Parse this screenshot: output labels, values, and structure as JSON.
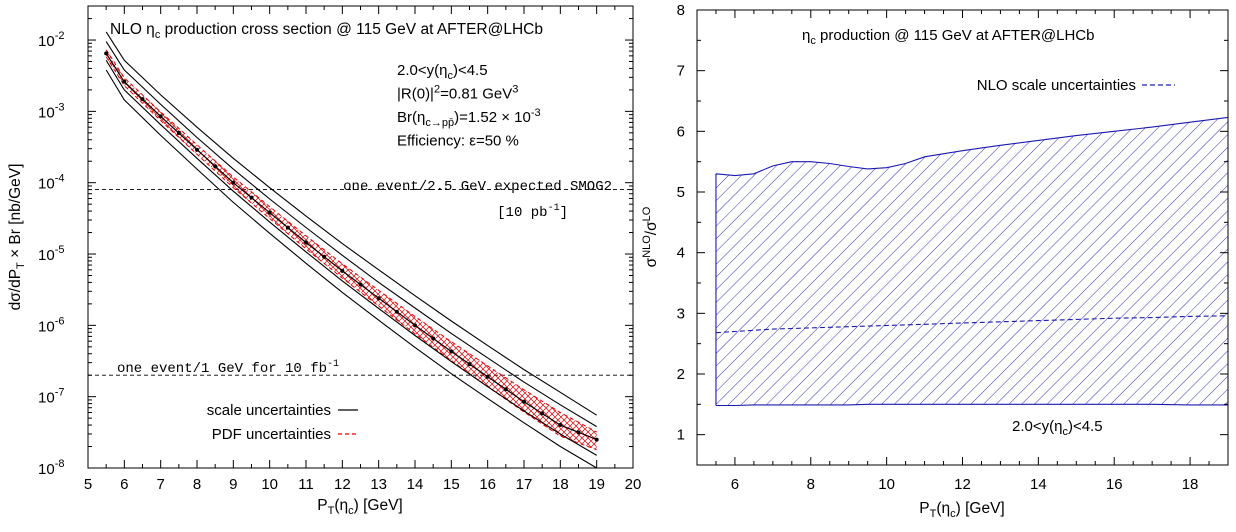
{
  "chart_data": [
    {
      "type": "line",
      "yscale": "log",
      "title": "NLO η_c production cross section @ 115 GeV at AFTER@LHCb",
      "xlabel": "P_T(η_c) [GeV]",
      "ylabel": "dσ/dP_T × Br [nb/GeV]",
      "xlim": [
        5,
        20
      ],
      "ylim": [
        1e-08,
        0.03
      ],
      "x_ticks": [
        "5",
        "6",
        "7",
        "8",
        "9",
        "10",
        "11",
        "12",
        "13",
        "14",
        "15",
        "16",
        "17",
        "18",
        "19",
        "20"
      ],
      "y_ticks": [
        {
          "value": 1e-08,
          "mant": "10",
          "exp": "-8"
        },
        {
          "value": 1e-07,
          "mant": "10",
          "exp": "-7"
        },
        {
          "value": 1e-06,
          "mant": "10",
          "exp": "-6"
        },
        {
          "value": 1e-05,
          "mant": "10",
          "exp": "-5"
        },
        {
          "value": 0.0001,
          "mant": "10",
          "exp": "-4"
        },
        {
          "value": 0.001,
          "mant": "10",
          "exp": "-3"
        },
        {
          "value": 0.01,
          "mant": "10",
          "exp": "-2"
        }
      ],
      "info_lines": [
        "2.0<y(η_c)<4.5",
        "|R(0)|²=0.81 GeV³",
        "Br(η_c→pp̄)=1.52 × 10⁻³",
        "Efficiency: ε=50 %"
      ],
      "reference_lines": [
        {
          "y": 8e-05,
          "label": "one event/2.5 GeV expected SMOG2",
          "sublabel": "[10 pb⁻¹]"
        },
        {
          "y": 2e-07,
          "label": "one event/1 GeV for 10 fb⁻¹"
        }
      ],
      "legend": [
        "scale uncertainties",
        "PDF uncertainties"
      ],
      "legend_position": "bottom-left",
      "colors": {
        "central": "#000000",
        "scale": "#000000",
        "pdf": "#e00000"
      },
      "x": [
        5.5,
        6,
        7,
        8,
        9,
        10,
        11,
        12,
        13,
        14,
        15,
        16,
        17,
        18,
        19
      ],
      "series": [
        {
          "name": "central",
          "values": [
            0.0065,
            0.0026,
            0.00085,
            0.00029,
            0.0001,
            3.8e-05,
            1.45e-05,
            5.8e-06,
            2.4e-06,
            1e-06,
            4.3e-07,
            1.9e-07,
            8.5e-08,
            4e-08,
            2.5e-08
          ]
        },
        {
          "name": "scale uncertainties",
          "values": [
            0.013,
            0.0052,
            0.0017,
            0.0006,
            0.00022,
            8.5e-05,
            3.4e-05,
            1.4e-05,
            6e-06,
            2.6e-06,
            1.15e-06,
            5.2e-07,
            2.4e-07,
            1.15e-07,
            5.5e-08
          ]
        },
        {
          "name": "scale uncertainties",
          "values": [
            0.0095,
            0.0038,
            0.00125,
            0.00043,
            0.000155,
            5.9e-05,
            2.35e-05,
            9.6e-06,
            4e-06,
            1.75e-06,
            7.7e-07,
            3.5e-07,
            1.6e-07,
            7.7e-08,
            3.8e-08
          ]
        },
        {
          "name": "scale uncertainties",
          "values": [
            0.0052,
            0.002,
            0.00065,
            0.00022,
            7.6e-05,
            2.8e-05,
            1.07e-05,
            4.2e-06,
            1.72e-06,
            7.2e-07,
            3.1e-07,
            1.38e-07,
            6.3e-08,
            3e-08,
            1.5e-08
          ]
        },
        {
          "name": "scale uncertainties",
          "values": [
            0.0038,
            0.00145,
            0.00046,
            0.000155,
            5.3e-05,
            1.95e-05,
            7.4e-06,
            2.9e-06,
            1.18e-06,
            4.9e-07,
            2.1e-07,
            9.4e-08,
            4.3e-08,
            2e-08,
            1e-08
          ]
        },
        {
          "name": "PDF uncertainties",
          "values": [
            0.0073,
            0.00295,
            0.00098,
            0.00034,
            0.00012,
            4.6e-05,
            1.8e-05,
            7.3e-06,
            3.1e-06,
            1.33e-06,
            5.9e-07,
            2.7e-07,
            1.25e-07,
            6e-08,
            3.2e-08
          ]
        },
        {
          "name": "PDF uncertainties",
          "values": [
            0.0058,
            0.0023,
            0.00074,
            0.00025,
            8.5e-05,
            3.15e-05,
            1.18e-05,
            4.6e-06,
            1.86e-06,
            7.6e-07,
            3.2e-07,
            1.38e-07,
            6.1e-08,
            2.8e-08,
            1.8e-08
          ]
        }
      ]
    },
    {
      "type": "area",
      "title": "η_c production @ 115 GeV at AFTER@LHCb",
      "xlabel": "P_T(η_c) [GeV]",
      "ylabel": "σ^NLO/σ^LO",
      "xlim": [
        5,
        19
      ],
      "ylim": [
        0.5,
        8
      ],
      "x_ticks": [
        "6",
        "8",
        "10",
        "12",
        "14",
        "16",
        "18"
      ],
      "y_ticks": [
        "1",
        "2",
        "3",
        "4",
        "5",
        "6",
        "7",
        "8"
      ],
      "legend": [
        "NLO scale uncertainties"
      ],
      "legend_position": "top-right",
      "annotation": "2.0<y(η_c)<4.5",
      "colors": {
        "band": "#1a1ab0"
      },
      "x": [
        5.5,
        6,
        6.5,
        7,
        7.5,
        8,
        8.5,
        9,
        9.5,
        10,
        10.5,
        11,
        12,
        13,
        14,
        15,
        16,
        17,
        18,
        19
      ],
      "series": [
        {
          "name": "upper",
          "values": [
            5.3,
            5.27,
            5.3,
            5.43,
            5.5,
            5.5,
            5.47,
            5.42,
            5.38,
            5.4,
            5.47,
            5.58,
            5.68,
            5.77,
            5.85,
            5.93,
            6.0,
            6.07,
            6.15,
            6.23
          ]
        },
        {
          "name": "central",
          "values": [
            2.68,
            2.7,
            2.72,
            2.74,
            2.75,
            2.76,
            2.77,
            2.78,
            2.79,
            2.8,
            2.81,
            2.82,
            2.84,
            2.86,
            2.88,
            2.9,
            2.92,
            2.93,
            2.95,
            2.96
          ]
        },
        {
          "name": "lower",
          "values": [
            1.48,
            1.48,
            1.49,
            1.49,
            1.49,
            1.49,
            1.49,
            1.49,
            1.5,
            1.5,
            1.5,
            1.5,
            1.5,
            1.5,
            1.5,
            1.5,
            1.5,
            1.5,
            1.49,
            1.49
          ]
        }
      ]
    }
  ]
}
